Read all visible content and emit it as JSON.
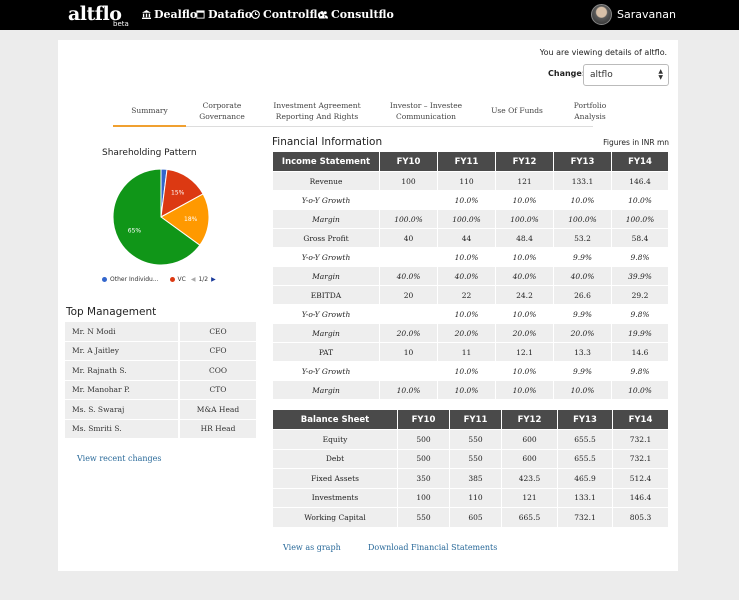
{
  "app": {
    "logo": "altflo",
    "logo_tag": "beta"
  },
  "nav": [
    {
      "label": "Dealflo",
      "icon": "bank-icon"
    },
    {
      "label": "Datafio",
      "icon": "window-icon"
    },
    {
      "label": "Controlflo",
      "icon": "clock-icon"
    },
    {
      "label": "Consultflo",
      "icon": "users-icon"
    }
  ],
  "user": {
    "name": "Saravanan"
  },
  "header": {
    "viewing": "You are viewing details of altflo.",
    "change_label": "Change:",
    "change_value": "altflo"
  },
  "tabs": [
    {
      "label": "Summary",
      "active": true
    },
    {
      "label": "Corporate\nGovernance"
    },
    {
      "label": "Investment Agreement\nReporting And Rights"
    },
    {
      "label": "Investor – Investee\nCommunication"
    },
    {
      "label": "Use Of Funds"
    },
    {
      "label": "Portfolio\nAnalysis"
    }
  ],
  "shareholding": {
    "title": "Shareholding Pattern",
    "slices": [
      {
        "name": "Other Individuals",
        "value": 2,
        "color": "#3366cc",
        "label": ""
      },
      {
        "name": "VC",
        "value": 15,
        "color": "#dc3912",
        "label": "15%"
      },
      {
        "name": "",
        "value": 18,
        "color": "#ff9900",
        "label": "18%"
      },
      {
        "name": "",
        "value": 65,
        "color": "#109618",
        "label": "65%"
      }
    ],
    "legend_item_1": "Other Individu...",
    "legend_item_2": "VC",
    "legend_page": "1/2"
  },
  "top_management": {
    "title": "Top Management",
    "rows": [
      {
        "name": "Mr. N Modi",
        "role": "CEO"
      },
      {
        "name": "Mr. A Jaitley",
        "role": "CFO"
      },
      {
        "name": "Mr. Rajnath S.",
        "role": "COO"
      },
      {
        "name": "Mr. Manohar P.",
        "role": "CTO"
      },
      {
        "name": "Ms. S. Swaraj",
        "role": "M&A Head"
      },
      {
        "name": "Ms. Smriti S.",
        "role": "HR Head"
      }
    ],
    "view_recent": "View recent changes"
  },
  "financial": {
    "title": "Financial Information",
    "unit_note": "Figures in INR mn",
    "income": {
      "header": [
        "Income Statement",
        "FY10",
        "FY11",
        "FY12",
        "FY13",
        "FY14"
      ],
      "rows": [
        {
          "style": "shade",
          "cells": [
            "Revenue",
            "100",
            "110",
            "121",
            "133.1",
            "146.4"
          ]
        },
        {
          "style": "italic-white",
          "cells": [
            "Y-o-Y Growth",
            "",
            "10.0%",
            "10.0%",
            "10.0%",
            "10.0%"
          ]
        },
        {
          "style": "italic-shade",
          "cells": [
            "Margin",
            "100.0%",
            "100.0%",
            "100.0%",
            "100.0%",
            "100.0%"
          ]
        },
        {
          "style": "shade",
          "cells": [
            "Gross Profit",
            "40",
            "44",
            "48.4",
            "53.2",
            "58.4"
          ]
        },
        {
          "style": "italic-white",
          "cells": [
            "Y-o-Y Growth",
            "",
            "10.0%",
            "10.0%",
            "9.9%",
            "9.8%"
          ]
        },
        {
          "style": "italic-shade",
          "cells": [
            "Margin",
            "40.0%",
            "40.0%",
            "40.0%",
            "40.0%",
            "39.9%"
          ]
        },
        {
          "style": "shade",
          "cells": [
            "EBITDA",
            "20",
            "22",
            "24.2",
            "26.6",
            "29.2"
          ]
        },
        {
          "style": "italic-white",
          "cells": [
            "Y-o-Y Growth",
            "",
            "10.0%",
            "10.0%",
            "9.9%",
            "9.8%"
          ]
        },
        {
          "style": "italic-shade",
          "cells": [
            "Margin",
            "20.0%",
            "20.0%",
            "20.0%",
            "20.0%",
            "19.9%"
          ]
        },
        {
          "style": "shade",
          "cells": [
            "PAT",
            "10",
            "11",
            "12.1",
            "13.3",
            "14.6"
          ]
        },
        {
          "style": "italic-white",
          "cells": [
            "Y-o-Y Growth",
            "",
            "10.0%",
            "10.0%",
            "9.9%",
            "9.8%"
          ]
        },
        {
          "style": "italic-shade",
          "cells": [
            "Margin",
            "10.0%",
            "10.0%",
            "10.0%",
            "10.0%",
            "10.0%"
          ]
        }
      ]
    },
    "balance": {
      "header": [
        "Balance Sheet",
        "FY10",
        "FY11",
        "FY12",
        "FY13",
        "FY14"
      ],
      "rows": [
        [
          "Equity",
          "500",
          "550",
          "600",
          "655.5",
          "732.1"
        ],
        [
          "Debt",
          "500",
          "550",
          "600",
          "655.5",
          "732.1"
        ],
        [
          "Fixed Assets",
          "350",
          "385",
          "423.5",
          "465.9",
          "512.4"
        ],
        [
          "Investments",
          "100",
          "110",
          "121",
          "133.1",
          "146.4"
        ],
        [
          "Working Capital",
          "550",
          "605",
          "665.5",
          "732.1",
          "805.3"
        ]
      ]
    },
    "view_graph": "View as graph",
    "download": "Download Financial Statements"
  }
}
